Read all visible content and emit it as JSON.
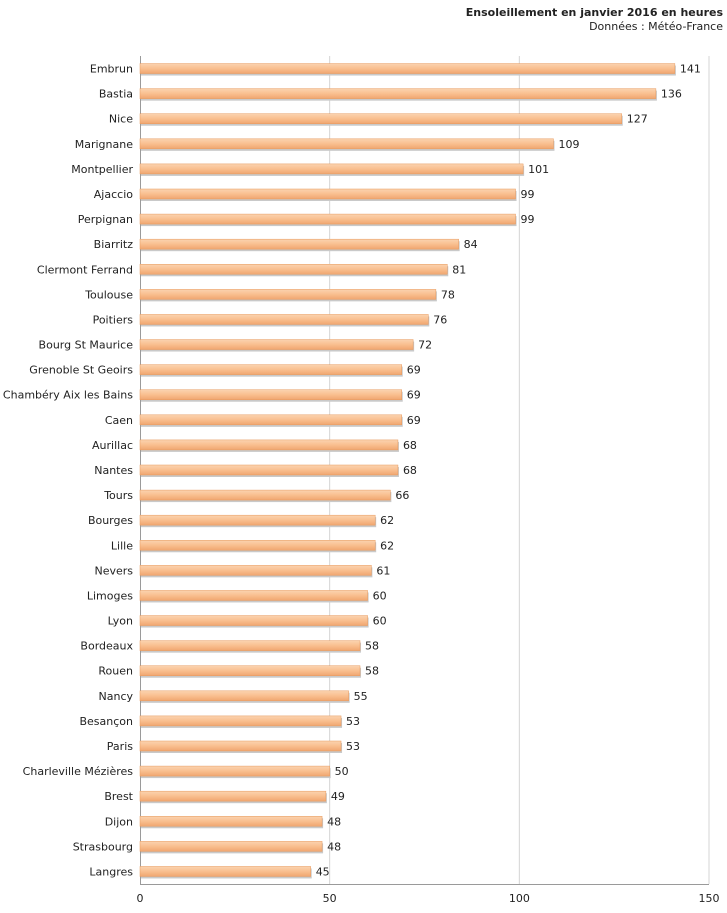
{
  "chart_data": {
    "type": "bar",
    "orientation": "horizontal",
    "title": "Ensoleillement en janvier 2016 en heures",
    "subtitle": "Données : Météo-France",
    "xlim": [
      0,
      150
    ],
    "xticks": [
      0,
      50,
      100,
      150
    ],
    "grid": true,
    "bar_color": "#f9bf8f",
    "categories": [
      "Embrun",
      "Bastia",
      "Nice",
      "Marignane",
      "Montpellier",
      "Ajaccio",
      "Perpignan",
      "Biarritz",
      "Clermont Ferrand",
      "Toulouse",
      "Poitiers",
      "Bourg St Maurice",
      "Grenoble St Geoirs",
      "Chambéry Aix les Bains",
      "Caen",
      "Aurillac",
      "Nantes",
      "Tours",
      "Bourges",
      "Lille",
      "Nevers",
      "Limoges",
      "Lyon",
      "Bordeaux",
      "Rouen",
      "Nancy",
      "Besançon",
      "Paris",
      "Charleville Mézières",
      "Brest",
      "Dijon",
      "Strasbourg",
      "Langres"
    ],
    "values": [
      141,
      136,
      127,
      109,
      101,
      99,
      99,
      84,
      81,
      78,
      76,
      72,
      69,
      69,
      69,
      68,
      68,
      66,
      62,
      62,
      61,
      60,
      60,
      58,
      58,
      55,
      53,
      53,
      50,
      49,
      48,
      48,
      45
    ]
  }
}
